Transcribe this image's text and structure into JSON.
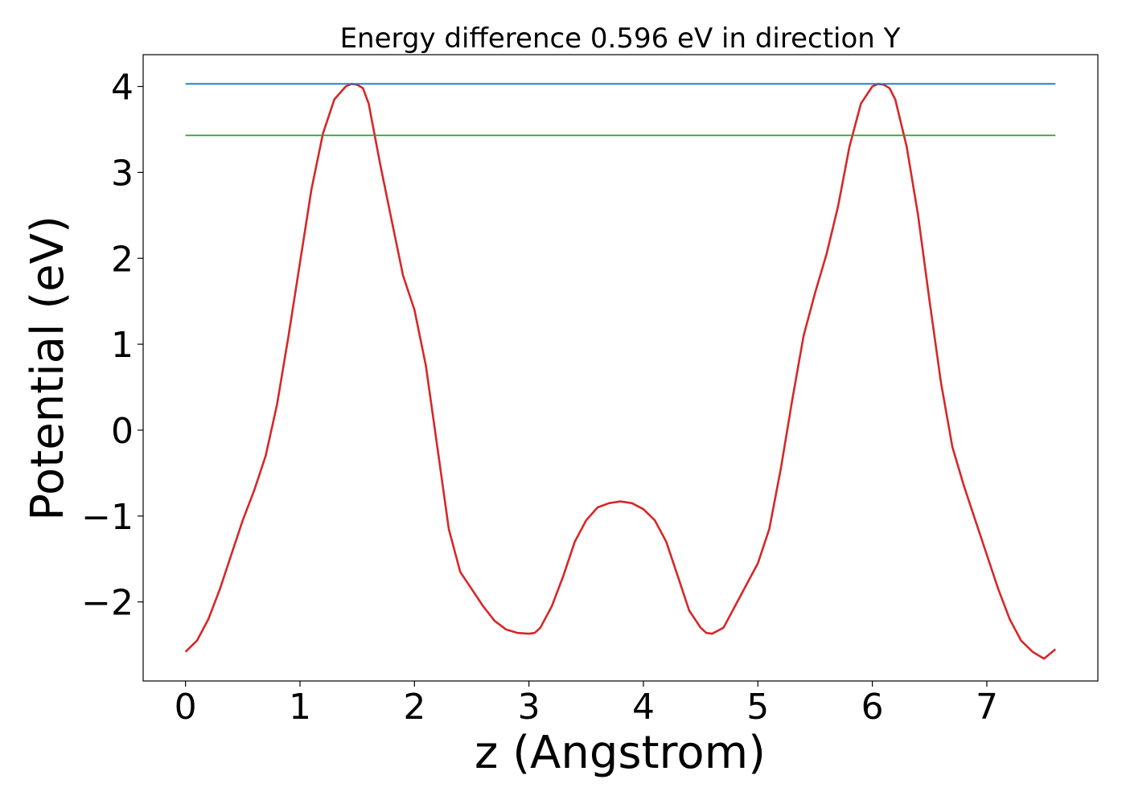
{
  "chart_data": {
    "type": "line",
    "title": "Energy difference 0.596 eV in direction Y",
    "xlabel": "z (Angstrom)",
    "ylabel": "Potential (eV)",
    "xlim": [
      -0.37,
      7.97
    ],
    "ylim": [
      -2.92,
      4.37
    ],
    "xticks": [
      0,
      1,
      2,
      3,
      4,
      5,
      6,
      7
    ],
    "xtick_labels": [
      "0",
      "1",
      "2",
      "3",
      "4",
      "5",
      "6",
      "7"
    ],
    "yticks": [
      -2,
      -1,
      0,
      1,
      2,
      3,
      4
    ],
    "ytick_labels": [
      "−2",
      "−1",
      "0",
      "1",
      "2",
      "3",
      "4"
    ],
    "grid": false,
    "series": [
      {
        "color": "#d62728",
        "x": [
          0,
          0.1,
          0.2,
          0.3,
          0.4,
          0.5,
          0.6,
          0.7,
          0.8,
          0.9,
          1.0,
          1.1,
          1.2,
          1.3,
          1.4,
          1.45,
          1.5,
          1.55,
          1.6,
          1.7,
          1.8,
          1.9,
          2.0,
          2.1,
          2.2,
          2.3,
          2.4,
          2.5,
          2.6,
          2.7,
          2.8,
          2.9,
          3.0,
          3.05,
          3.1,
          3.2,
          3.3,
          3.4,
          3.5,
          3.6,
          3.7,
          3.8,
          3.9,
          4.0,
          4.1,
          4.2,
          4.3,
          4.4,
          4.5,
          4.55,
          4.6,
          4.7,
          4.8,
          4.9,
          5.0,
          5.1,
          5.2,
          5.3,
          5.4,
          5.5,
          5.6,
          5.7,
          5.8,
          5.9,
          6.0,
          6.05,
          6.1,
          6.15,
          6.2,
          6.3,
          6.4,
          6.5,
          6.6,
          6.7,
          6.8,
          6.9,
          7.0,
          7.1,
          7.2,
          7.3,
          7.4,
          7.5,
          7.6
        ],
        "y": [
          -2.58,
          -2.45,
          -2.2,
          -1.85,
          -1.45,
          -1.05,
          -0.7,
          -0.3,
          0.3,
          1.1,
          1.95,
          2.8,
          3.45,
          3.85,
          4.0,
          4.03,
          4.02,
          3.98,
          3.8,
          3.1,
          2.45,
          1.8,
          1.4,
          0.75,
          -0.2,
          -1.15,
          -1.65,
          -1.85,
          -2.05,
          -2.22,
          -2.32,
          -2.36,
          -2.37,
          -2.36,
          -2.3,
          -2.05,
          -1.7,
          -1.3,
          -1.05,
          -0.9,
          -0.85,
          -0.83,
          -0.85,
          -0.92,
          -1.05,
          -1.3,
          -1.7,
          -2.1,
          -2.3,
          -2.36,
          -2.37,
          -2.3,
          -2.05,
          -1.8,
          -1.55,
          -1.15,
          -0.45,
          0.35,
          1.1,
          1.6,
          2.05,
          2.6,
          3.3,
          3.8,
          4.0,
          4.03,
          4.02,
          3.98,
          3.85,
          3.3,
          2.5,
          1.5,
          0.55,
          -0.2,
          -0.65,
          -1.05,
          -1.45,
          -1.85,
          -2.2,
          -2.45,
          -2.58,
          -2.66,
          -2.55
        ]
      },
      {
        "color": "#1f77b4",
        "x": [
          0,
          7.6
        ],
        "y": [
          4.03,
          4.03
        ]
      },
      {
        "color": "#2ca02c",
        "x": [
          0,
          7.6
        ],
        "y": [
          3.43,
          3.43
        ]
      }
    ]
  }
}
